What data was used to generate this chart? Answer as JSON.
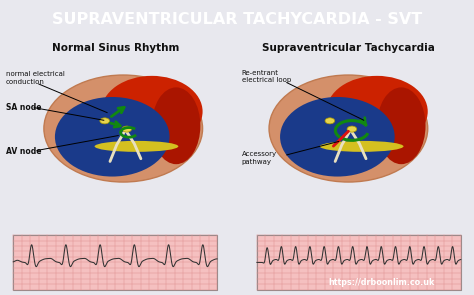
{
  "title": "SUPRAVENTRICULAR TACHYCARDIA - SVT",
  "title_bg": "#ee2222",
  "title_color": "#ffffff",
  "bg_color": "#e8e8ee",
  "left_title": "Normal Sinus Rhythm",
  "right_title": "Supraventricular Tachycardia",
  "left_labels": [
    "normal electrical\nconduction",
    "SA node",
    "AV node"
  ],
  "right_labels": [
    "Re-entrant\nelectrical loop",
    "Accessory\npathway"
  ],
  "url_text": "https://drboonlim.co.uk",
  "url_bg": "#ee2222",
  "url_color": "#ffffff",
  "heart_red": "#cc2200",
  "heart_red2": "#aa1500",
  "heart_blue": "#1a3a8a",
  "heart_skin": "#d4906a",
  "heart_skin_edge": "#c07a50",
  "heart_yellow": "#e8d44d",
  "heart_green": "#118811",
  "heart_white": "#e8e0c0",
  "ecg_bg": "#f5c0c0",
  "ecg_grid": "#e09090",
  "ecg_line": "#333333"
}
